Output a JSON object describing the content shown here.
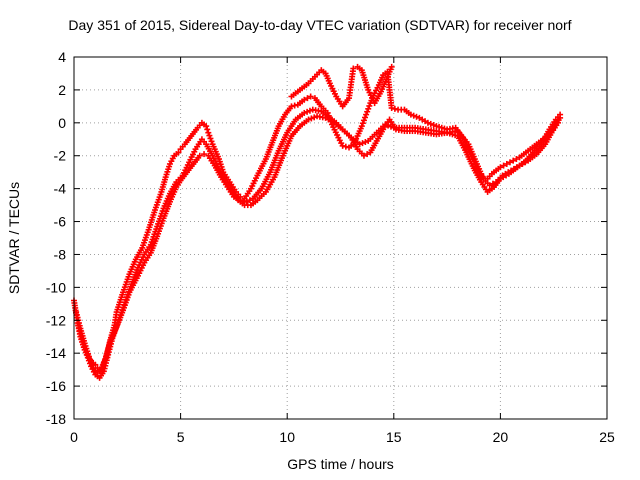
{
  "chart_data": {
    "type": "scatter",
    "title": "Day 351 of 2015, Sidereal Day-to-day VTEC variation (SDTVAR) for receiver norf",
    "xlabel": "GPS time / hours",
    "ylabel": "SDTVAR / TECUs",
    "xlim": [
      0,
      25
    ],
    "ylim": [
      -18,
      4
    ],
    "xticks": [
      "0",
      "5",
      "10",
      "15",
      "20",
      "25"
    ],
    "yticks": [
      "4",
      "2",
      "0",
      "-2",
      "-4",
      "-6",
      "-8",
      "-10",
      "-12",
      "-14",
      "-16",
      "-18"
    ],
    "grid": true,
    "marker": "plus",
    "series": [
      {
        "color": "#ff0000",
        "x": [
          0.0,
          0.15,
          0.3,
          0.5,
          0.7,
          0.9,
          1.0,
          1.1,
          1.25,
          1.5,
          1.7,
          1.9,
          2.0,
          2.3,
          2.6,
          2.9,
          3.2,
          3.5,
          3.8,
          4.1,
          4.3,
          4.5,
          4.7,
          4.9,
          5.0,
          5.2,
          5.5,
          5.8,
          6.0,
          6.2,
          6.3,
          6.5,
          6.8,
          7.0,
          7.3,
          7.6,
          7.8,
          8.0,
          8.3,
          8.6,
          9.0,
          9.3,
          9.6,
          9.9,
          10.2,
          10.5,
          10.8,
          11.1,
          11.3,
          11.6,
          11.9,
          12.1,
          12.4,
          12.6,
          12.9,
          13.1,
          13.3,
          13.5,
          13.7,
          13.9,
          14.1,
          14.3,
          14.5,
          14.7,
          14.9,
          15.2,
          15.5,
          15.8,
          16.2,
          16.6,
          17.0,
          17.5,
          17.9,
          18.3,
          18.7,
          19.0,
          19.2,
          19.4,
          19.6,
          19.8,
          20.0,
          20.3,
          20.6,
          20.9,
          21.2,
          21.5,
          21.8,
          22.1,
          22.4,
          22.6,
          22.8
        ],
        "y": [
          -10.8,
          -12.0,
          -13.0,
          -13.8,
          -14.3,
          -14.6,
          -14.7,
          -14.9,
          -15.0,
          -14.3,
          -13.2,
          -12.3,
          -11.5,
          -10.3,
          -9.2,
          -8.3,
          -7.6,
          -6.5,
          -5.3,
          -4.2,
          -3.3,
          -2.5,
          -2.0,
          -1.8,
          -1.6,
          -1.3,
          -0.8,
          -0.3,
          0.0,
          -0.2,
          -0.6,
          -1.3,
          -2.2,
          -3.0,
          -3.6,
          -4.2,
          -4.5,
          -4.6,
          -4.0,
          -3.2,
          -2.2,
          -1.2,
          -0.2,
          0.5,
          1.0,
          1.1,
          1.4,
          1.6,
          1.5,
          1.0,
          0.6,
          -0.1,
          -0.9,
          -1.4,
          -1.5,
          -1.3,
          -0.8,
          -0.2,
          0.5,
          1.2,
          1.8,
          2.3,
          2.9,
          3.1,
          0.9,
          0.8,
          0.8,
          0.5,
          0.3,
          0.0,
          -0.2,
          -0.4,
          -0.3,
          -1.0,
          -2.2,
          -3.0,
          -3.3,
          -3.4,
          -3.1,
          -2.9,
          -2.7,
          -2.5,
          -2.3,
          -2.1,
          -1.8,
          -1.5,
          -1.2,
          -0.9,
          -0.5,
          -0.1,
          0.3
        ]
      },
      {
        "color": "#ff0000",
        "x": [
          0.1,
          0.3,
          0.5,
          0.7,
          0.9,
          1.1,
          1.3,
          1.5,
          1.7,
          2.0,
          2.3,
          2.6,
          3.0,
          3.3,
          3.6,
          3.9,
          4.2,
          4.5,
          4.8,
          5.0,
          5.3,
          5.6,
          5.9,
          6.1,
          6.3,
          6.6,
          6.9,
          7.2,
          7.5,
          7.8,
          8.1,
          8.4,
          8.8,
          9.2,
          9.6,
          10.0,
          10.4,
          10.8,
          11.2,
          11.6,
          12.0,
          12.3,
          12.6,
          13.0,
          13.4,
          13.8,
          14.2,
          14.6,
          15.0,
          15.5,
          16.0,
          16.5,
          17.0,
          17.5,
          18.0,
          18.5,
          18.9,
          19.2,
          19.5,
          19.8,
          20.1,
          20.5,
          20.9,
          21.3,
          21.7,
          22.1,
          22.4,
          22.7
        ],
        "y": [
          -11.5,
          -12.5,
          -13.4,
          -14.2,
          -14.9,
          -15.2,
          -15.0,
          -14.2,
          -13.3,
          -12.4,
          -11.4,
          -10.3,
          -9.3,
          -8.5,
          -7.9,
          -6.9,
          -5.8,
          -4.8,
          -3.9,
          -3.5,
          -3.0,
          -2.5,
          -2.0,
          -1.9,
          -2.0,
          -2.6,
          -3.3,
          -3.9,
          -4.5,
          -4.7,
          -4.8,
          -4.6,
          -4.0,
          -3.0,
          -1.7,
          -0.6,
          0.2,
          0.6,
          0.8,
          0.7,
          0.3,
          0.0,
          -0.4,
          -0.9,
          -1.3,
          -1.1,
          -0.6,
          -0.1,
          -0.3,
          -0.3,
          -0.3,
          -0.4,
          -0.5,
          -0.6,
          -0.5,
          -1.3,
          -2.5,
          -3.4,
          -3.8,
          -3.6,
          -3.2,
          -2.9,
          -2.6,
          -2.3,
          -1.9,
          -1.3,
          -0.6,
          0.0
        ]
      },
      {
        "color": "#ff0000",
        "x": [
          0.2,
          0.4,
          0.6,
          0.8,
          1.0,
          1.2,
          1.4,
          1.6,
          1.8,
          2.1,
          2.4,
          2.7,
          3.0,
          3.3,
          3.6,
          3.9,
          4.2,
          4.5,
          4.8,
          5.1,
          5.4,
          5.7,
          6.0,
          6.2,
          6.5,
          6.8,
          7.1,
          7.4,
          7.7,
          8.0,
          8.3,
          8.6,
          9.0,
          9.4,
          9.8,
          10.2,
          10.6,
          11.0,
          11.4,
          11.8,
          12.2,
          12.6,
          13.0,
          13.3,
          13.6,
          13.9,
          14.2,
          14.5,
          14.8,
          15.1,
          15.5,
          16.0,
          16.5,
          17.0,
          17.5,
          18.0,
          18.4,
          18.8,
          19.1,
          19.4,
          19.7,
          20.0,
          20.4,
          20.8,
          21.2,
          21.6,
          22.0,
          22.3,
          22.6,
          22.8
        ],
        "y": [
          -12.3,
          -13.3,
          -14.1,
          -14.8,
          -15.3,
          -15.5,
          -15.1,
          -14.1,
          -13.1,
          -12.0,
          -10.9,
          -9.8,
          -8.8,
          -8.0,
          -7.4,
          -6.3,
          -5.2,
          -4.3,
          -3.6,
          -3.2,
          -2.4,
          -1.6,
          -1.0,
          -1.3,
          -2.0,
          -2.8,
          -3.5,
          -4.1,
          -4.7,
          -5.0,
          -5.0,
          -4.7,
          -4.2,
          -3.3,
          -2.0,
          -0.8,
          -0.2,
          0.2,
          0.4,
          0.3,
          0.0,
          -0.4,
          -0.9,
          -1.6,
          -2.0,
          -1.8,
          -1.1,
          -0.4,
          0.2,
          -0.4,
          -0.5,
          -0.5,
          -0.6,
          -0.7,
          -0.6,
          -0.8,
          -1.8,
          -2.9,
          -3.6,
          -4.2,
          -3.9,
          -3.4,
          -3.1,
          -2.7,
          -2.3,
          -1.7,
          -1.1,
          -0.4,
          0.2,
          0.5
        ]
      },
      {
        "color": "#ff0000",
        "x": [
          10.2,
          10.6,
          11.0,
          11.3,
          11.6,
          11.8,
          12.0,
          12.3,
          12.6,
          12.9,
          13.1,
          13.3,
          13.5,
          13.8,
          14.1,
          14.4,
          14.7,
          14.9
        ],
        "y": [
          1.6,
          2.0,
          2.4,
          2.8,
          3.2,
          3.0,
          2.4,
          1.6,
          1.0,
          1.5,
          3.3,
          3.4,
          3.2,
          2.0,
          1.2,
          1.9,
          2.8,
          3.4
        ]
      }
    ]
  }
}
